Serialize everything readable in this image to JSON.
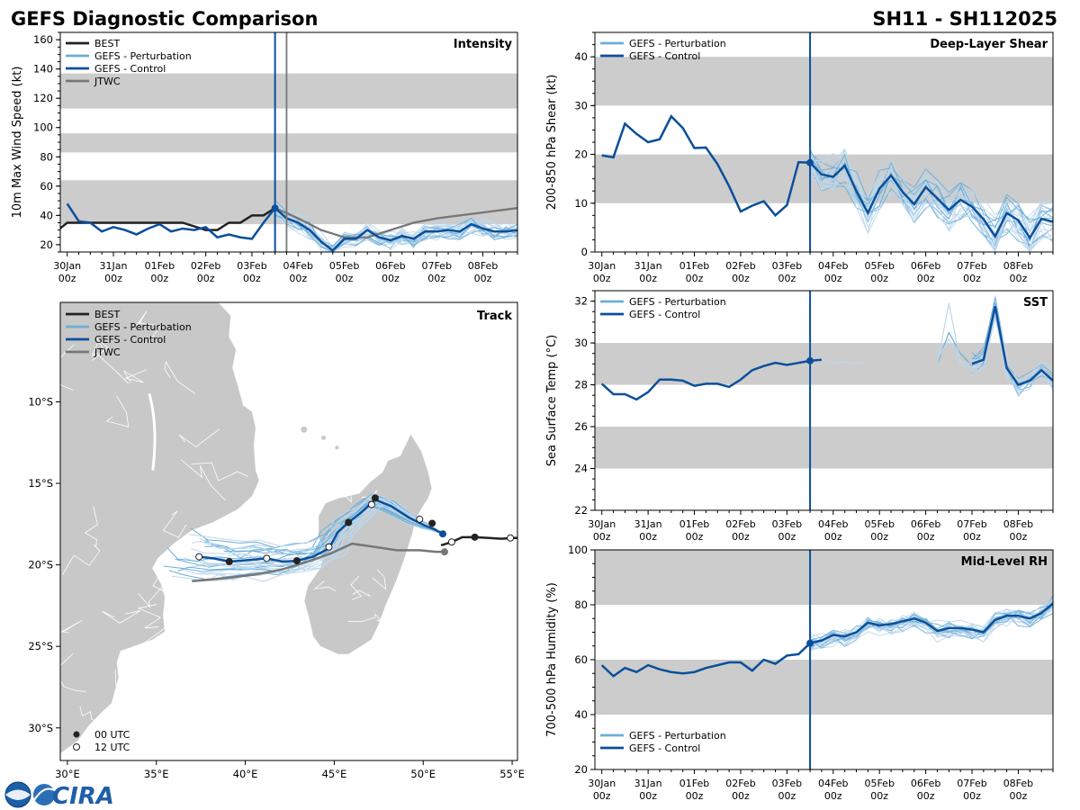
{
  "header": {
    "title": "GEFS Diagnostic Comparison",
    "storm_id": "SH11 - SH112025"
  },
  "time_axis": {
    "tick_days": [
      "30Jan",
      "31Jan",
      "01Feb",
      "02Feb",
      "03Feb",
      "04Feb",
      "05Feb",
      "06Feb",
      "07Feb",
      "08Feb"
    ],
    "tick_hours": "00z",
    "x_range_days": [
      -0.15,
      9.75
    ],
    "init_time_days": 4.5
  },
  "legend": {
    "best": "BEST",
    "pert": "GEFS - Perturbation",
    "ctrl": "GEFS - Control",
    "jtwc": "JTWC",
    "utc00": "00 UTC",
    "utc12": "12 UTC"
  },
  "colors": {
    "best": "#222222",
    "ctrl": "#0b4f9c",
    "pert": "#6baed6",
    "pert_light": "#bcd7ec",
    "jtwc": "#777777",
    "band": "#cccccc",
    "land": "#c8c8c8"
  },
  "chart_data": [
    {
      "id": "intensity",
      "type": "line",
      "title": "Intensity",
      "ylabel": "10m Max Wind Speed (kt)",
      "ylim": [
        15,
        165
      ],
      "yticks": [
        20,
        40,
        60,
        80,
        100,
        120,
        140,
        160
      ],
      "bands": [
        [
          34,
          64
        ],
        [
          83,
          96
        ],
        [
          113,
          137
        ]
      ],
      "jtwc_marker_days": 4.75,
      "best": {
        "x": [
          -0.2,
          0.0,
          0.25,
          0.5,
          1.0,
          1.5,
          2.0,
          2.5,
          3.0,
          3.25,
          3.5,
          3.75,
          4.0,
          4.25,
          4.5
        ],
        "y": [
          30,
          35,
          35,
          35,
          35,
          35,
          35,
          35,
          30,
          30,
          35,
          35,
          40,
          40,
          45
        ]
      },
      "control": {
        "x": [
          0.0,
          0.25,
          0.5,
          0.75,
          1.0,
          1.25,
          1.5,
          1.75,
          2.0,
          2.25,
          2.5,
          2.75,
          3.0,
          3.25,
          3.5,
          3.75,
          4.0,
          4.25,
          4.5,
          4.75,
          5.0,
          5.25,
          5.5,
          5.75,
          6.0,
          6.25,
          6.5,
          6.75,
          7.0,
          7.25,
          7.5,
          7.75,
          8.0,
          8.25,
          8.5,
          8.75,
          9.0,
          9.25,
          9.5,
          9.75
        ],
        "y": [
          48,
          36,
          35,
          29,
          32,
          30,
          27,
          31,
          34,
          29,
          31,
          30,
          32,
          25,
          27,
          25,
          24,
          35,
          45,
          38,
          35,
          30,
          22,
          16,
          24,
          24,
          30,
          25,
          23,
          26,
          24,
          29,
          29,
          30,
          29,
          34,
          31,
          29,
          29,
          30
        ]
      },
      "jtwc": {
        "x": [
          4.5,
          5.0,
          5.5,
          6.0,
          6.5,
          7.0,
          7.5,
          8.0,
          8.5,
          9.0,
          9.5,
          9.75
        ],
        "y": [
          45,
          38,
          30,
          25,
          25,
          30,
          35,
          38,
          40,
          42,
          44,
          45
        ]
      }
    },
    {
      "id": "shear",
      "type": "line",
      "title": "Deep-Layer Shear",
      "ylabel": "200-850 hPa Shear (kt)",
      "ylim": [
        0,
        45
      ],
      "yticks": [
        0,
        10,
        20,
        30,
        40
      ],
      "bands": [
        [
          10,
          20
        ],
        [
          30,
          40
        ]
      ],
      "control": {
        "x": [
          0.0,
          0.25,
          0.5,
          0.75,
          1.0,
          1.25,
          1.5,
          1.75,
          2.0,
          2.25,
          2.5,
          2.75,
          3.0,
          3.25,
          3.5,
          3.75,
          4.0,
          4.25,
          4.5,
          4.75,
          5.0,
          5.25,
          5.5,
          5.75,
          6.0,
          6.25,
          6.5,
          6.75,
          7.0,
          7.25,
          7.5,
          7.75,
          8.0,
          8.25,
          8.5,
          8.75,
          9.0,
          9.25,
          9.5,
          9.75
        ],
        "y": [
          19.8,
          19.4,
          26.3,
          24.2,
          22.5,
          23.1,
          27.8,
          25.4,
          21.3,
          21.4,
          18.0,
          13.5,
          8.3,
          9.5,
          10.4,
          7.5,
          9.6,
          18.4,
          18.3,
          15.9,
          15.4,
          17.7,
          12.5,
          8.0,
          13.0,
          15.7,
          12.3,
          9.8,
          13.3,
          11.0,
          8.6,
          10.7,
          9.3,
          6.7,
          3.2,
          8.0,
          6.5,
          2.9,
          6.8,
          6.2
        ]
      }
    },
    {
      "id": "sst",
      "type": "line",
      "title": "SST",
      "ylabel": "Sea Surface Temp (°C)",
      "ylim": [
        22,
        32.5
      ],
      "yticks": [
        22,
        24,
        26,
        28,
        30,
        32
      ],
      "bands": [
        [
          24,
          26
        ],
        [
          28,
          30
        ]
      ],
      "control": {
        "x": [
          0.0,
          0.25,
          0.5,
          0.75,
          1.0,
          1.25,
          1.5,
          1.75,
          2.0,
          2.25,
          2.5,
          2.75,
          3.0,
          3.25,
          3.5,
          3.75,
          4.0,
          4.25,
          4.5,
          4.75
        ],
        "y": [
          28.05,
          27.55,
          27.55,
          27.3,
          27.65,
          28.25,
          28.25,
          28.2,
          27.95,
          28.05,
          28.05,
          27.9,
          28.25,
          28.7,
          28.9,
          29.05,
          28.95,
          29.05,
          29.15,
          29.2
        ]
      },
      "control2": {
        "x": [
          8.0,
          8.25,
          8.5,
          8.75,
          9.0,
          9.25,
          9.5,
          9.75
        ],
        "y": [
          29.0,
          29.2,
          31.75,
          28.8,
          28.0,
          28.2,
          28.7,
          28.2
        ]
      }
    },
    {
      "id": "rh",
      "type": "line",
      "title": "Mid-Level RH",
      "ylabel": "700-500 hPa Humidity (%)",
      "ylim": [
        20,
        100
      ],
      "yticks": [
        20,
        40,
        60,
        80,
        100
      ],
      "bands": [
        [
          40,
          60
        ],
        [
          80,
          100
        ]
      ],
      "control": {
        "x": [
          0.0,
          0.25,
          0.5,
          0.75,
          1.0,
          1.25,
          1.5,
          1.75,
          2.0,
          2.25,
          2.5,
          2.75,
          3.0,
          3.25,
          3.5,
          3.75,
          4.0,
          4.25,
          4.5,
          4.75,
          5.0,
          5.25,
          5.5,
          5.75,
          6.0,
          6.25,
          6.5,
          6.75,
          7.0,
          7.25,
          7.5,
          7.75,
          8.0,
          8.25,
          8.5,
          8.75,
          9.0,
          9.25,
          9.5,
          9.75
        ],
        "y": [
          58,
          54,
          57,
          55.5,
          58,
          56.5,
          55.5,
          55,
          55.5,
          57,
          58,
          59,
          59,
          56,
          60,
          58.5,
          61.5,
          62,
          66,
          67,
          69,
          68.5,
          70,
          73.5,
          72.5,
          73,
          74,
          75,
          73.5,
          70.5,
          71.5,
          71.5,
          71,
          70,
          74.5,
          76,
          76,
          75,
          77,
          80.5
        ]
      }
    },
    {
      "id": "track",
      "type": "scatter",
      "title": "Track",
      "lon_range": [
        29.6,
        55.3
      ],
      "lat_range": [
        -32.0,
        -3.9
      ],
      "lon_ticks": [
        30,
        35,
        40,
        45,
        50,
        55
      ],
      "lon_tick_labels": [
        "30°E",
        "35°E",
        "40°E",
        "45°E",
        "50°E",
        "55°E"
      ],
      "lat_ticks": [
        -10,
        -15,
        -20,
        -25,
        -30
      ],
      "lat_tick_labels": [
        "10°S",
        "15°S",
        "20°S",
        "25°S",
        "30°S"
      ],
      "best": {
        "lon": [
          51.0,
          51.6,
          52.2,
          52.9,
          53.7,
          54.4,
          55.0,
          55.3
        ],
        "lat": [
          -18.8,
          -18.6,
          -18.3,
          -18.3,
          -18.35,
          -18.4,
          -18.35,
          -18.35
        ]
      },
      "best_markers": {
        "lon": [
          51.6,
          52.9,
          54.9
        ],
        "lat": [
          -18.6,
          -18.3,
          -18.35
        ],
        "utc": [
          "12",
          "00",
          "12"
        ]
      },
      "control": {
        "lon": [
          37.4,
          38.2,
          39.1,
          40.2,
          41.2,
          42.1,
          42.9,
          43.8,
          44.7,
          45.2,
          45.8,
          46.5,
          47.3,
          48.2,
          49.2,
          50.1,
          50.6,
          51.1
        ],
        "lat": [
          -19.5,
          -19.6,
          -19.8,
          -19.7,
          -19.6,
          -19.8,
          -19.75,
          -19.5,
          -19.0,
          -18.0,
          -17.4,
          -16.8,
          -16.0,
          -16.4,
          -17.1,
          -17.6,
          -17.8,
          -18.1
        ]
      },
      "control_markers": {
        "lon": [
          37.4,
          39.1,
          41.2,
          42.9,
          44.7,
          45.8,
          47.1,
          47.3,
          49.8,
          50.5
        ],
        "lat": [
          -19.5,
          -19.8,
          -19.6,
          -19.75,
          -18.9,
          -17.4,
          -16.3,
          -15.9,
          -17.2,
          -17.45
        ],
        "utc": [
          "12",
          "00",
          "12",
          "00",
          "12",
          "00",
          "12",
          "00",
          "12",
          "00"
        ]
      },
      "jtwc": {
        "lon": [
          37.0,
          39.0,
          40.5,
          42.0,
          43.5,
          44.8,
          46.0,
          47.3,
          48.5,
          49.8,
          50.7,
          51.2
        ],
        "lat": [
          -21.0,
          -20.8,
          -20.6,
          -20.3,
          -19.8,
          -19.3,
          -18.7,
          -18.9,
          -19.1,
          -19.1,
          -19.2,
          -19.2
        ]
      },
      "initial_position": {
        "lon": 51.1,
        "lat": -18.1
      }
    }
  ],
  "logos": {
    "noaa": "NOAA",
    "cira": "CIRA"
  }
}
